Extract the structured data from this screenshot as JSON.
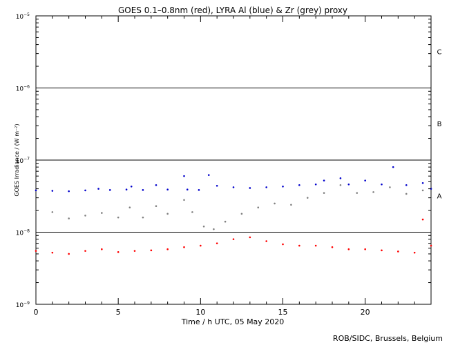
{
  "chart_data": {
    "type": "scatter",
    "title": "GOES 0.1–0.8nm (red), LYRA Al (blue) & Zr (grey) proxy",
    "xlabel": "Time / h UTC, 05 May 2020",
    "ylabel": "GOES Irradiance / (W m⁻²)",
    "credit": "ROB/SIDC, Brussels, Belgium",
    "xlim": [
      0,
      24
    ],
    "ylim": [
      1e-09,
      1e-05
    ],
    "yscale": "log",
    "x_ticks": [
      {
        "value": 0,
        "label": "0"
      },
      {
        "value": 5,
        "label": "5"
      },
      {
        "value": 10,
        "label": "10"
      },
      {
        "value": 15,
        "label": "15"
      },
      {
        "value": 20,
        "label": "20"
      }
    ],
    "y_ticks": [
      {
        "value": 1e-09,
        "base": "10",
        "exp": "−9"
      },
      {
        "value": 1e-08,
        "base": "10",
        "exp": "−8"
      },
      {
        "value": 1e-07,
        "base": "10",
        "exp": "−7"
      },
      {
        "value": 1e-06,
        "base": "10",
        "exp": "−6"
      },
      {
        "value": 1e-05,
        "base": "10",
        "exp": "−5"
      }
    ],
    "flare_class_lines": [
      {
        "value": 1e-08,
        "label": "A"
      },
      {
        "value": 1e-07,
        "label": "B"
      },
      {
        "value": 1e-06,
        "label": "C"
      }
    ],
    "flare_class_labels": [
      {
        "label": "A",
        "value": 3.2e-08
      },
      {
        "label": "B",
        "value": 3.2e-07
      },
      {
        "label": "C",
        "value": 3.2e-06
      }
    ],
    "series": [
      {
        "name": "LYRA Al",
        "color": "#0000cc",
        "points": [
          [
            0,
            3.8e-08
          ],
          [
            1,
            3.75e-08
          ],
          [
            2,
            3.7e-08
          ],
          [
            3,
            3.8e-08
          ],
          [
            3.8,
            4e-08
          ],
          [
            4.5,
            3.85e-08
          ],
          [
            5.5,
            3.9e-08
          ],
          [
            5.8,
            4.3e-08
          ],
          [
            6.5,
            3.85e-08
          ],
          [
            7.3,
            4.5e-08
          ],
          [
            8,
            3.9e-08
          ],
          [
            9.0,
            6e-08
          ],
          [
            9.2,
            3.9e-08
          ],
          [
            9.9,
            3.85e-08
          ],
          [
            10.5,
            6.2e-08
          ],
          [
            11,
            4.4e-08
          ],
          [
            12,
            4.2e-08
          ],
          [
            13,
            4.1e-08
          ],
          [
            14,
            4.2e-08
          ],
          [
            15,
            4.3e-08
          ],
          [
            16,
            4.5e-08
          ],
          [
            17,
            4.6e-08
          ],
          [
            17.5,
            5.2e-08
          ],
          [
            18.5,
            5.6e-08
          ],
          [
            19,
            4.6e-08
          ],
          [
            20,
            5.2e-08
          ],
          [
            21,
            4.6e-08
          ],
          [
            21.7,
            8e-08
          ],
          [
            22.5,
            4.5e-08
          ],
          [
            23.5,
            4.8e-08
          ],
          [
            24,
            4e-08
          ]
        ]
      },
      {
        "name": "LYRA Zr",
        "color": "#808080",
        "points": [
          [
            0,
            2e-08
          ],
          [
            1,
            1.9e-08
          ],
          [
            2,
            1.55e-08
          ],
          [
            3,
            1.7e-08
          ],
          [
            4,
            1.85e-08
          ],
          [
            5,
            1.6e-08
          ],
          [
            5.7,
            2.2e-08
          ],
          [
            6.5,
            1.6e-08
          ],
          [
            7.3,
            2.3e-08
          ],
          [
            8,
            1.8e-08
          ],
          [
            9.0,
            2.8e-08
          ],
          [
            9.5,
            1.9e-08
          ],
          [
            10.2,
            1.2e-08
          ],
          [
            10.8,
            1.1e-08
          ],
          [
            11.5,
            1.4e-08
          ],
          [
            12.5,
            1.8e-08
          ],
          [
            13.5,
            2.2e-08
          ],
          [
            14.5,
            2.5e-08
          ],
          [
            15.5,
            2.4e-08
          ],
          [
            16.5,
            3e-08
          ],
          [
            17.5,
            3.5e-08
          ],
          [
            18.5,
            4.5e-08
          ],
          [
            19.5,
            3.5e-08
          ],
          [
            20.5,
            3.6e-08
          ],
          [
            21.5,
            4.2e-08
          ],
          [
            22.5,
            3.4e-08
          ],
          [
            23.5,
            3.8e-08
          ],
          [
            24,
            3e-08
          ]
        ]
      },
      {
        "name": "GOES 0.1–0.8nm",
        "color": "#ff0000",
        "points": [
          [
            0,
            5.5e-09
          ],
          [
            1,
            5.2e-09
          ],
          [
            2,
            5e-09
          ],
          [
            3,
            5.5e-09
          ],
          [
            4,
            5.8e-09
          ],
          [
            5,
            5.3e-09
          ],
          [
            6,
            5.5e-09
          ],
          [
            7,
            5.6e-09
          ],
          [
            8,
            5.8e-09
          ],
          [
            9,
            6.2e-09
          ],
          [
            10,
            6.5e-09
          ],
          [
            11,
            7e-09
          ],
          [
            12,
            8e-09
          ],
          [
            13,
            8.5e-09
          ],
          [
            14,
            7.5e-09
          ],
          [
            15,
            6.8e-09
          ],
          [
            16,
            6.5e-09
          ],
          [
            17,
            6.5e-09
          ],
          [
            18,
            6.2e-09
          ],
          [
            19,
            5.8e-09
          ],
          [
            20,
            5.8e-09
          ],
          [
            21,
            5.6e-09
          ],
          [
            22,
            5.4e-09
          ],
          [
            23,
            5.2e-09
          ],
          [
            23.5,
            1.5e-08
          ],
          [
            24,
            6.5e-09
          ]
        ]
      }
    ]
  }
}
